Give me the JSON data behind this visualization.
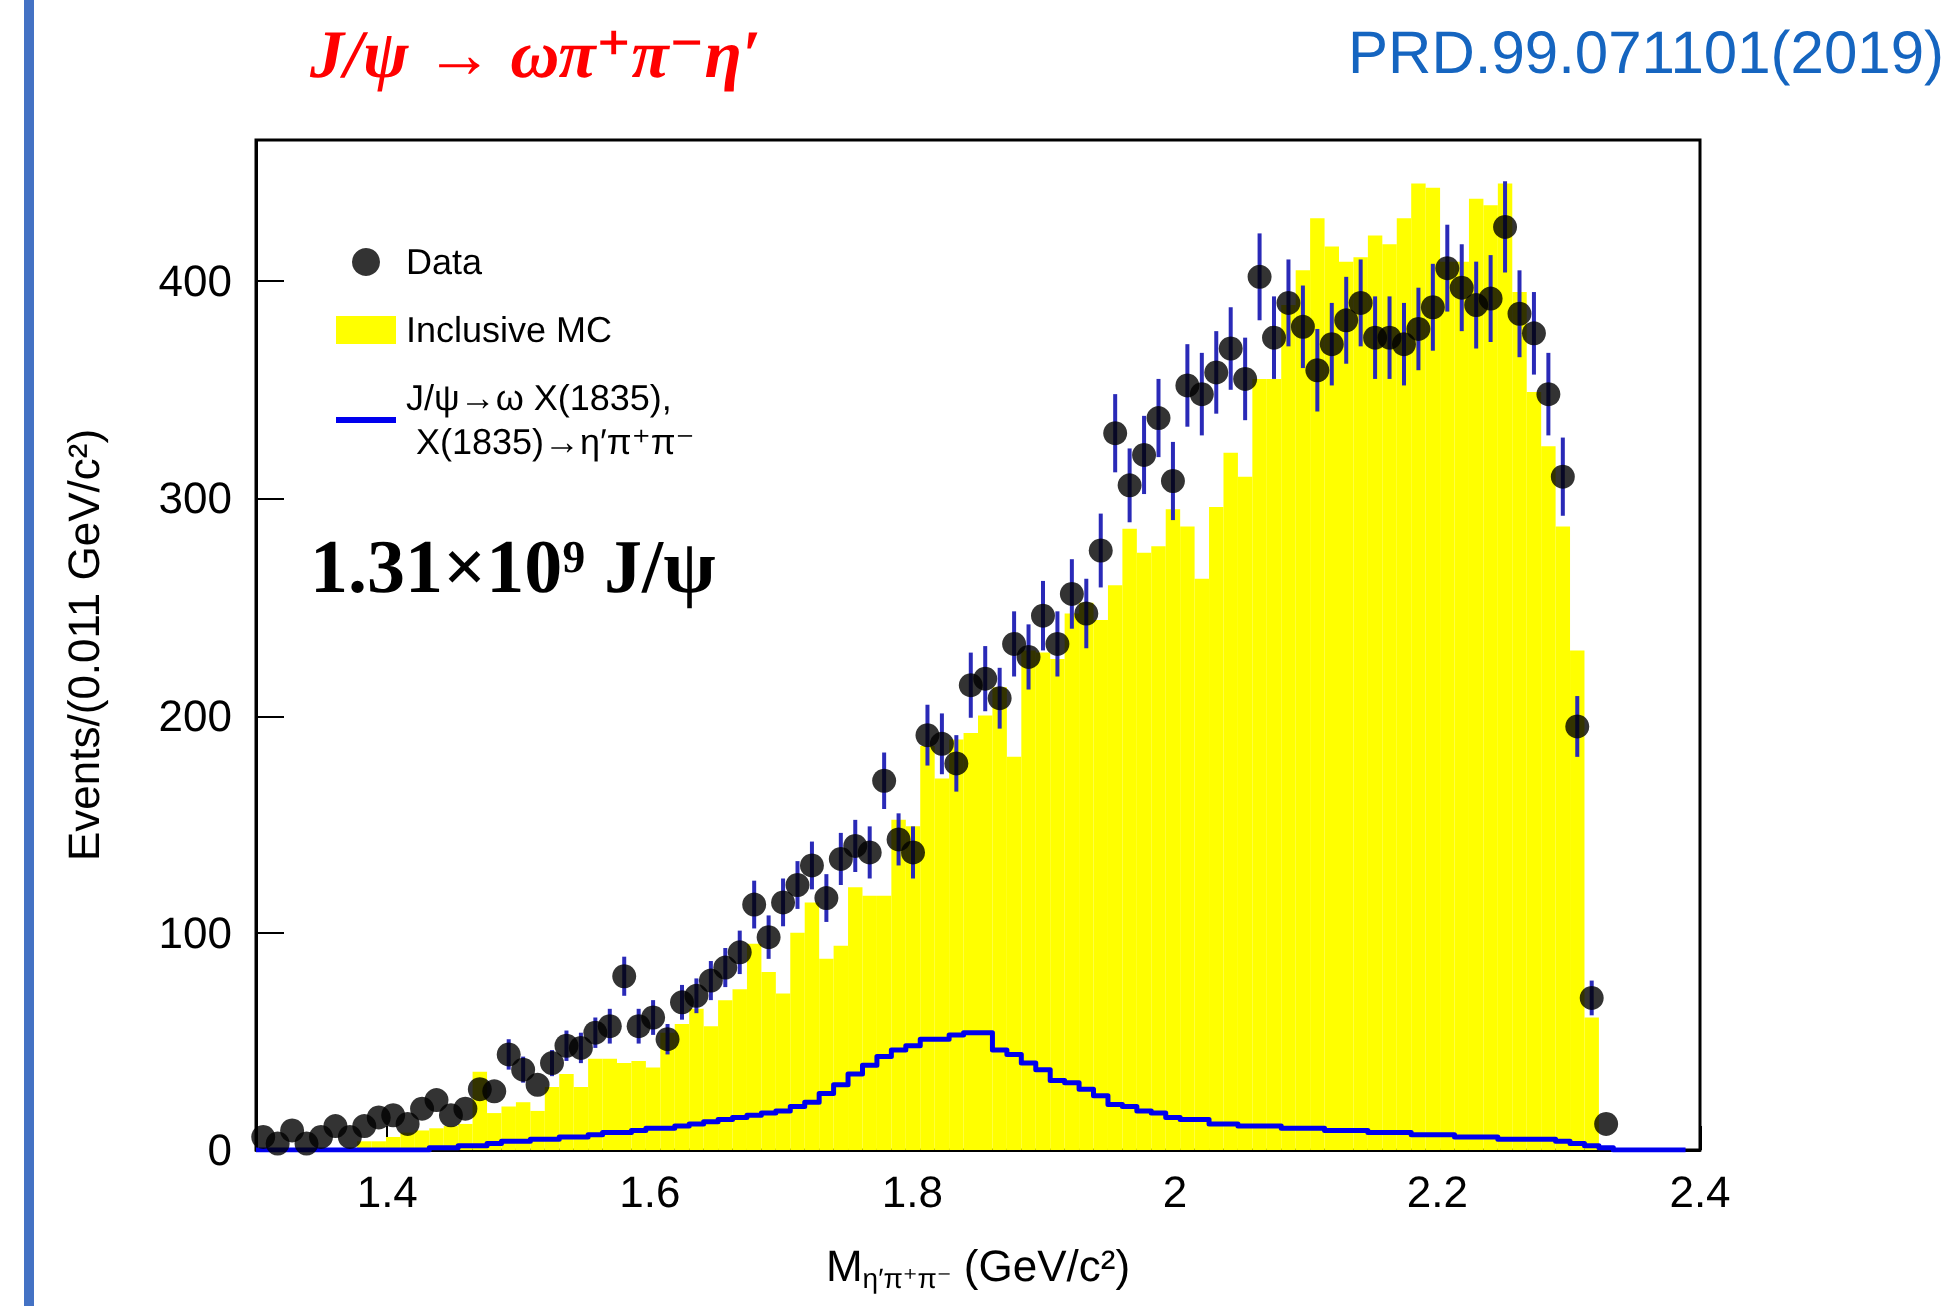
{
  "chart_data": {
    "type": "histogram",
    "title": "J/ψ → ωπ⁺π⁻η′",
    "xlabel": "M$_{η′π⁺π⁻}$ (GeV/c²)",
    "ylabel": "Events/(0.011 GeV/c²)",
    "annotations": [
      "PRD.99.071101(2019)",
      "1.31×10⁹ J/ψ"
    ],
    "xlim": [
      1.3,
      2.4
    ],
    "xticks": [
      1.4,
      1.6,
      1.8,
      2,
      2.2,
      2.4
    ],
    "ylim": [
      0,
      465
    ],
    "yticks": [
      0,
      100,
      200,
      300,
      400
    ],
    "grid": false,
    "legend": "top left",
    "marker": "circle",
    "bins": [
      1.3,
      1.311,
      1.322,
      1.333,
      1.344,
      1.355,
      1.366,
      1.377,
      1.388,
      1.399,
      1.41,
      1.421,
      1.432,
      1.443,
      1.454,
      1.465,
      1.476,
      1.487,
      1.498,
      1.509,
      1.52,
      1.531,
      1.542,
      1.553,
      1.564,
      1.575,
      1.586,
      1.597,
      1.608,
      1.619,
      1.63,
      1.641,
      1.652,
      1.663,
      1.674,
      1.685,
      1.696,
      1.707,
      1.718,
      1.729,
      1.74,
      1.751,
      1.762,
      1.773,
      1.784,
      1.795,
      1.806,
      1.817,
      1.828,
      1.839,
      1.85,
      1.861,
      1.872,
      1.883,
      1.894,
      1.905,
      1.916,
      1.927,
      1.938,
      1.949,
      1.96,
      1.971,
      1.982,
      1.993,
      2.004,
      2.015,
      2.026,
      2.037,
      2.048,
      2.059,
      2.07,
      2.081,
      2.092,
      2.103,
      2.114,
      2.125,
      2.136,
      2.147,
      2.158,
      2.169,
      2.18,
      2.191,
      2.202,
      2.213,
      2.224,
      2.235,
      2.246,
      2.257,
      2.268,
      2.279,
      2.29,
      2.301,
      2.312,
      2.323,
      2.334,
      2.345,
      2.356,
      2.367,
      2.378,
      2.389,
      2.4
    ],
    "series": [
      {
        "name": "Data",
        "type": "scatter",
        "color": "#000000",
        "x": [
          1.3055,
          1.3165,
          1.3275,
          1.3385,
          1.3495,
          1.3605,
          1.3715,
          1.3825,
          1.3935,
          1.4045,
          1.4155,
          1.4265,
          1.4375,
          1.4485,
          1.4595,
          1.4705,
          1.4815,
          1.4925,
          1.5035,
          1.5145,
          1.5255,
          1.5365,
          1.5475,
          1.5585,
          1.5695,
          1.5805,
          1.5915,
          1.6025,
          1.6135,
          1.6245,
          1.6355,
          1.6465,
          1.6575,
          1.6685,
          1.6795,
          1.6905,
          1.7015,
          1.7125,
          1.7235,
          1.7345,
          1.7455,
          1.7565,
          1.7675,
          1.7785,
          1.7895,
          1.8005,
          1.8115,
          1.8225,
          1.8335,
          1.8445,
          1.8555,
          1.8665,
          1.8775,
          1.8885,
          1.8995,
          1.9105,
          1.9215,
          1.9325,
          1.9435,
          1.9545,
          1.9655,
          1.9765,
          1.9875,
          1.9985,
          2.0095,
          2.0205,
          2.0315,
          2.0425,
          2.0535,
          2.0645,
          2.0755,
          2.0865,
          2.0975,
          2.1085,
          2.1195,
          2.1305,
          2.1415,
          2.1525,
          2.1635,
          2.1745,
          2.1855,
          2.1965,
          2.2075,
          2.2185,
          2.2295,
          2.2405,
          2.2515,
          2.2625,
          2.2735,
          2.2845,
          2.2955,
          2.3065,
          2.3175,
          2.3285
        ],
        "values": [
          6,
          3,
          9,
          3,
          6,
          11,
          6,
          11,
          15,
          16,
          12,
          19,
          23,
          16,
          19,
          28,
          27,
          44,
          37,
          30,
          40,
          48,
          47,
          54,
          57,
          80,
          57,
          61,
          51,
          68,
          71,
          78,
          84,
          91,
          113,
          98,
          114,
          122,
          131,
          116,
          134,
          140,
          137,
          170,
          143,
          137,
          191,
          187,
          178,
          214,
          217,
          208,
          233,
          227,
          246,
          233,
          256,
          247,
          276,
          330,
          306,
          320,
          337,
          308,
          352,
          348,
          358,
          369,
          355,
          402,
          374,
          390,
          379,
          359,
          371,
          382,
          390,
          374,
          374,
          371,
          378,
          388,
          406,
          397,
          389,
          392,
          425,
          385,
          376,
          348,
          310,
          195,
          70,
          12
        ],
        "errors": [
          null,
          null,
          null,
          null,
          null,
          null,
          null,
          null,
          null,
          null,
          null,
          null,
          null,
          null,
          null,
          null,
          null,
          7,
          6,
          null,
          6,
          7,
          7,
          7,
          8,
          9,
          8,
          8,
          7,
          8,
          8,
          9,
          9,
          10,
          11,
          10,
          11,
          11,
          11,
          11,
          12,
          12,
          12,
          13,
          12,
          12,
          14,
          14,
          13,
          15,
          15,
          14,
          15,
          15,
          16,
          15,
          16,
          16,
          17,
          18,
          17,
          18,
          18,
          18,
          19,
          19,
          19,
          19,
          19,
          20,
          19,
          20,
          19,
          19,
          19,
          20,
          20,
          19,
          19,
          19,
          19,
          20,
          20,
          20,
          20,
          20,
          21,
          20,
          19,
          19,
          18,
          14,
          8,
          null
        ]
      },
      {
        "name": "Inclusive MC",
        "type": "histogram",
        "color": "#ffff00",
        "values": [
          null,
          1,
          null,
          1,
          null,
          null,
          null,
          4,
          4,
          6,
          8,
          9,
          10,
          11,
          12,
          36,
          17,
          20,
          22,
          18,
          29,
          35,
          29,
          42,
          42,
          40,
          41,
          38,
          54,
          58,
          65,
          57,
          69,
          74,
          95,
          82,
          72,
          100,
          114,
          88,
          94,
          121,
          117,
          117,
          152,
          149,
          186,
          171,
          189,
          192,
          200,
          213,
          181,
          230,
          229,
          226,
          247,
          252,
          244,
          260,
          286,
          275,
          278,
          295,
          287,
          263,
          296,
          321,
          310,
          355,
          355,
          389,
          405,
          429,
          416,
          409,
          411,
          421,
          417,
          429,
          445,
          443,
          409,
          409,
          438,
          435,
          445,
          395,
          349,
          324,
          287,
          230,
          61,
          0,
          0,
          0,
          0,
          0,
          0,
          0
        ]
      },
      {
        "name": "J/ψ→ω X(1835), X(1835)→η′π⁺π⁻",
        "type": "step",
        "marker": "none",
        "color": "#0000ee",
        "x": [
          1.3,
          1.311,
          1.322,
          1.333,
          1.344,
          1.355,
          1.366,
          1.377,
          1.388,
          1.399,
          1.41,
          1.421,
          1.432,
          1.443,
          1.454,
          1.465,
          1.476,
          1.487,
          1.498,
          1.509,
          1.52,
          1.531,
          1.542,
          1.553,
          1.564,
          1.575,
          1.586,
          1.597,
          1.608,
          1.619,
          1.63,
          1.641,
          1.652,
          1.663,
          1.674,
          1.685,
          1.696,
          1.707,
          1.718,
          1.729,
          1.74,
          1.751,
          1.762,
          1.773,
          1.784,
          1.795,
          1.806,
          1.817,
          1.828,
          1.839,
          1.85,
          1.861,
          1.872,
          1.883,
          1.894,
          1.905,
          1.916,
          1.927,
          1.938,
          1.949,
          1.96,
          1.971,
          1.982,
          1.993,
          2.004,
          2.015,
          2.026,
          2.037,
          2.048,
          2.059,
          2.07,
          2.081,
          2.092,
          2.103,
          2.114,
          2.125,
          2.136,
          2.147,
          2.158,
          2.169,
          2.18,
          2.191,
          2.202,
          2.213,
          2.224,
          2.235,
          2.246,
          2.257,
          2.268,
          2.279,
          2.29,
          2.301,
          2.312,
          2.323,
          2.334,
          2.345,
          2.356,
          2.367,
          2.378,
          2.389
        ],
        "values": [
          0,
          0,
          0,
          0,
          0,
          0,
          0,
          0,
          0,
          0,
          0,
          0,
          1,
          1,
          2,
          2,
          3,
          4,
          4,
          5,
          5,
          6,
          6,
          7,
          8,
          8,
          9,
          10,
          10,
          11,
          12,
          13,
          14,
          15,
          16,
          17,
          18,
          20,
          22,
          26,
          30,
          35,
          39,
          43,
          46,
          48,
          51,
          51,
          53,
          54,
          54,
          46,
          44,
          40,
          37,
          32,
          31,
          28,
          25,
          21,
          20,
          18,
          17,
          15,
          14,
          14,
          12,
          12,
          11,
          11,
          11,
          10,
          10,
          10,
          9,
          9,
          9,
          8,
          8,
          8,
          7,
          7,
          7,
          6,
          6,
          6,
          5,
          5,
          5,
          5,
          4,
          3,
          2,
          1,
          0,
          0,
          0,
          0,
          0,
          0
        ]
      }
    ]
  }
}
